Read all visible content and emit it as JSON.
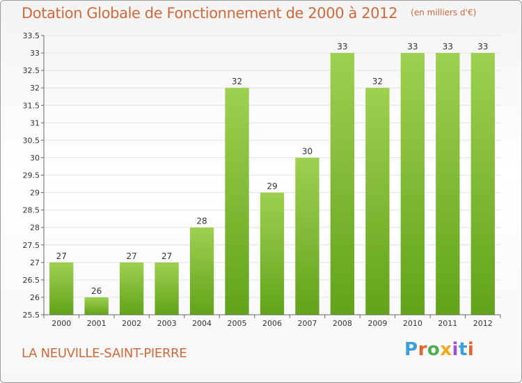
{
  "header": {
    "title": "Dotation Globale de Fonctionnement de 2000 à 2012",
    "unit": "(en milliers d'€)"
  },
  "footer": {
    "place": "LA NEUVILLE-SAINT-PIERRE",
    "logo": "Proxiti",
    "logo_colors": [
      "#3aa0d8",
      "#e8632b",
      "#4caf50",
      "#f2a81d",
      "#9c4fd1",
      "#3aa0d8",
      "#e8632b"
    ]
  },
  "chart_data": {
    "type": "bar",
    "title": "Dotation Globale de Fonctionnement de 2000 à 2012",
    "subtitle": "(en milliers d'€)",
    "xlabel": "",
    "ylabel": "",
    "categories": [
      "2000",
      "2001",
      "2002",
      "2003",
      "2004",
      "2005",
      "2006",
      "2007",
      "2008",
      "2009",
      "2010",
      "2011",
      "2012"
    ],
    "values": [
      27,
      26,
      27,
      27,
      28,
      32,
      29,
      30,
      33,
      32,
      33,
      33,
      33
    ],
    "ylim": [
      25.5,
      33.5
    ],
    "yticks": [
      25.5,
      26,
      26.5,
      27,
      27.5,
      28,
      28.5,
      29,
      29.5,
      30,
      30.5,
      31,
      31.5,
      32,
      32.5,
      33,
      33.5
    ],
    "grid": true,
    "legend": "none",
    "colors": {
      "bar_top": "#9ed050",
      "bar_bottom": "#62a31b",
      "grid": "#e2e2e2",
      "axis": "#666666"
    }
  }
}
